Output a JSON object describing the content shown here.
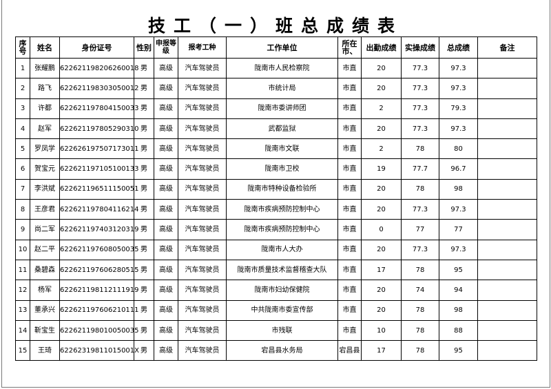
{
  "title": "技工（一）班总成绩表",
  "headers": [
    "序号",
    "姓名",
    "身份证号",
    "性别",
    "申报等级",
    "报考工种",
    "工作单位",
    "所在市、",
    "出勤成绩",
    "实操成绩",
    "总成绩",
    "备注"
  ],
  "rows": [
    [
      "1",
      "张耀鹏",
      "622621198206260018",
      "男",
      "高级",
      "汽车驾驶员",
      "陇南市人民检察院",
      "市直",
      "20",
      "77.3",
      "97.3",
      ""
    ],
    [
      "2",
      "路飞",
      "622621198303050012",
      "男",
      "高级",
      "汽车驾驶员",
      "市统计局",
      "市直",
      "20",
      "77.3",
      "97.3",
      ""
    ],
    [
      "3",
      "许都",
      "622621197804150033",
      "男",
      "高级",
      "汽车驾驶员",
      "陇南市委讲师团",
      "市直",
      "2",
      "77.3",
      "79.3",
      ""
    ],
    [
      "4",
      "赵军",
      "622621197805290310",
      "男",
      "高级",
      "汽车驾驶员",
      "武都监狱",
      "市直",
      "20",
      "77.3",
      "97.3",
      ""
    ],
    [
      "5",
      "罗凤学",
      "622626197507173011",
      "男",
      "高级",
      "汽车驾驶员",
      "陇南市文联",
      "市直",
      "2",
      "78",
      "80",
      ""
    ],
    [
      "6",
      "贺宝元",
      "622621197105100133",
      "男",
      "高级",
      "汽车驾驶员",
      "陇南市卫校",
      "市直",
      "19",
      "77.7",
      "96.7",
      ""
    ],
    [
      "7",
      "李洪斌",
      "622621196511150051",
      "男",
      "高级",
      "汽车驾驶员",
      "陇南市特种设备检验所",
      "市直",
      "20",
      "78",
      "98",
      ""
    ],
    [
      "8",
      "王彦君",
      "622621197804116214",
      "男",
      "高级",
      "汽车驾驶员",
      "陇南市疾病预防控制中心",
      "市直",
      "20",
      "77.3",
      "97.3",
      ""
    ],
    [
      "9",
      "尚二军",
      "622621197403120319",
      "男",
      "高级",
      "汽车驾驶员",
      "陇南市疾病预防控制中心",
      "市直",
      "0",
      "77",
      "77",
      ""
    ],
    [
      "10",
      "赵二平",
      "622621197608050035",
      "男",
      "高级",
      "汽车驾驶员",
      "陇南市人大办",
      "市直",
      "20",
      "77.3",
      "97.3",
      ""
    ],
    [
      "11",
      "桑碧森",
      "622621197606280515",
      "男",
      "高级",
      "汽车驾驶员",
      "陇南市质量技术监督稽查大队",
      "市直",
      "17",
      "78",
      "95",
      ""
    ],
    [
      "12",
      "杨军",
      "622621198112111919",
      "男",
      "高级",
      "汽车驾驶员",
      "陇南市妇幼保健院",
      "市直",
      "20",
      "74",
      "94",
      ""
    ],
    [
      "13",
      "董承兴",
      "622621197606210111",
      "男",
      "高级",
      "汽车驾驶员",
      "中共陇南市委宣传部",
      "市直",
      "20",
      "78",
      "98",
      ""
    ],
    [
      "14",
      "靳宝生",
      "622621198010050035",
      "男",
      "高级",
      "汽车驾驶员",
      "市残联",
      "市直",
      "10",
      "78",
      "88",
      ""
    ],
    [
      "15",
      "王琦",
      "62262319811015001X",
      "男",
      "高级",
      "汽车驾驶员",
      "宕昌县水务局",
      "宕昌县",
      "17",
      "78",
      "95",
      ""
    ]
  ]
}
